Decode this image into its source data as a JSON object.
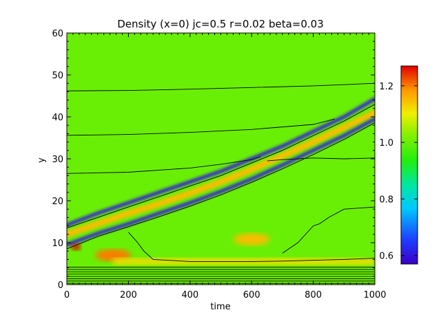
{
  "chart_data": {
    "type": "heatmap",
    "title": "Density (x=0) jc=0.5 r=0.02 beta=0.03",
    "xlabel": "time",
    "ylabel": "y",
    "xlim": [
      0,
      1000
    ],
    "ylim": [
      0,
      60
    ],
    "x_ticks": [
      "0",
      "200",
      "400",
      "600",
      "800",
      "1000"
    ],
    "x_tick_values": [
      0,
      200,
      400,
      600,
      800,
      1000
    ],
    "y_ticks": [
      "0",
      "10",
      "20",
      "30",
      "40",
      "50",
      "60"
    ],
    "y_tick_values": [
      0,
      10,
      20,
      30,
      40,
      50,
      60
    ],
    "colorbar": {
      "range": [
        0.57,
        1.27
      ],
      "tick_labels": [
        "0.6",
        "0.8",
        "1.0",
        "1.2"
      ],
      "tick_values": [
        0.6,
        0.8,
        1.0,
        1.2
      ],
      "colormap": "rainbow (purple-blue-cyan-green-yellow-red)"
    },
    "background_value": 1.0,
    "features": [
      {
        "kind": "low-density band",
        "value": 0.6,
        "path": [
          [
            0,
            14.2
          ],
          [
            100,
            17
          ],
          [
            200,
            19.5
          ],
          [
            300,
            22
          ],
          [
            400,
            24.5
          ],
          [
            500,
            27
          ],
          [
            600,
            30
          ],
          [
            700,
            33
          ],
          [
            800,
            36.5
          ],
          [
            900,
            40
          ],
          [
            1000,
            44.3
          ]
        ]
      },
      {
        "kind": "high-density band",
        "value": 1.15,
        "path": [
          [
            0,
            12
          ],
          [
            100,
            14.5
          ],
          [
            200,
            17
          ],
          [
            300,
            19.3
          ],
          [
            400,
            21.8
          ],
          [
            500,
            24.5
          ],
          [
            600,
            27.5
          ],
          [
            700,
            30.7
          ],
          [
            800,
            34
          ],
          [
            900,
            37.5
          ],
          [
            1000,
            41
          ]
        ]
      },
      {
        "kind": "low-density band",
        "value": 0.6,
        "path": [
          [
            0,
            9.5
          ],
          [
            100,
            12.2
          ],
          [
            200,
            14.5
          ],
          [
            300,
            17
          ],
          [
            400,
            19.5
          ],
          [
            500,
            22.2
          ],
          [
            600,
            25.2
          ],
          [
            700,
            28.5
          ],
          [
            800,
            32
          ],
          [
            900,
            35.5
          ],
          [
            1000,
            39.5
          ]
        ]
      },
      {
        "kind": "peak",
        "value": 1.27,
        "x": 30,
        "y": 9
      },
      {
        "kind": "high-density patch",
        "value": 1.2,
        "x": 150,
        "y": 7
      },
      {
        "kind": "high-density patch",
        "value": 1.15,
        "x": 600,
        "y": 10.8
      },
      {
        "kind": "high-density layer",
        "value": 1.12,
        "x_range": [
          150,
          1000
        ],
        "y": 5.5
      }
    ],
    "contours": [
      {
        "x": [
          0,
          200,
          400,
          600,
          800,
          1000
        ],
        "y": [
          46.2,
          46.3,
          46.6,
          47,
          47.4,
          48
        ]
      },
      {
        "x": [
          0,
          200,
          400,
          600,
          800,
          870
        ],
        "y": [
          35.6,
          35.8,
          36.3,
          37,
          38.2,
          39.5
        ]
      },
      {
        "x": [
          0,
          200,
          400,
          500,
          600,
          630
        ],
        "y": [
          26.5,
          26.8,
          27.8,
          28.7,
          29.8,
          30.5
        ]
      },
      {
        "x": [
          0,
          100,
          200,
          300,
          400,
          500,
          600,
          700,
          800,
          900,
          1000
        ],
        "y": [
          13.5,
          16,
          18.5,
          21,
          23.5,
          26,
          29,
          32,
          35.5,
          39,
          43
        ]
      },
      {
        "x": [
          0,
          100,
          200,
          300,
          400,
          500,
          600,
          700,
          800,
          900,
          1000
        ],
        "y": [
          8.5,
          11.5,
          13.8,
          16.2,
          18.7,
          21.4,
          24.4,
          27.6,
          31,
          34.6,
          38.6
        ]
      },
      {
        "x": [
          200,
          230,
          250,
          280,
          400,
          600,
          700,
          800,
          900,
          1000
        ],
        "y": [
          12.5,
          10,
          8,
          6,
          5.5,
          5.5,
          5.6,
          5.8,
          6,
          6.3
        ]
      },
      {
        "x": [
          700,
          750,
          800,
          820,
          850,
          900,
          1000
        ],
        "y": [
          7.5,
          10,
          14,
          14.5,
          16,
          18,
          18.5
        ]
      },
      {
        "x": [
          650,
          700,
          800,
          900,
          1000
        ],
        "y": [
          29.5,
          29.8,
          30.2,
          30,
          30.2
        ]
      }
    ]
  }
}
